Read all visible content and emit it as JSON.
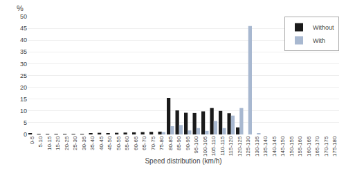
{
  "chart_data": {
    "type": "bar",
    "categories": [
      "0-5",
      "5-10",
      "10-15",
      "15-20",
      "20-25",
      "25-30",
      "30-35",
      "35-40",
      "40-45",
      "45-50",
      "50-55",
      "55-60",
      "60-65",
      "65-70",
      "70-75",
      "75-80",
      "80-85",
      "85-90",
      "90-95",
      "95-100",
      "100-105",
      "105-110",
      "110-115",
      "115-120",
      "120-125",
      "125-130",
      "130-135",
      "135-140",
      "140-145",
      "145-150",
      "150-155",
      "155-160",
      "160-165",
      "165-170",
      "170-175",
      "175-180"
    ],
    "series": [
      {
        "name": "Without",
        "color": "#1a1a1a",
        "values": [
          0.3,
          0.1,
          0.1,
          0.1,
          0.1,
          0.1,
          0.1,
          0.5,
          0.7,
          0.5,
          0.7,
          0.8,
          0.9,
          1.0,
          1.1,
          1.2,
          15.5,
          10.2,
          9.2,
          9.1,
          9.8,
          11.2,
          10.0,
          9.0,
          3.0,
          0.0,
          0.0,
          0.0,
          0.0,
          0.0,
          0.0,
          0.0,
          0.0,
          0.0,
          0.0,
          0.0
        ]
      },
      {
        "name": "With",
        "color": "#a8b8d0",
        "values": [
          0.0,
          0.0,
          0.0,
          0.0,
          0.0,
          0.0,
          0.0,
          0.0,
          0.0,
          0.0,
          0.0,
          0.0,
          0.0,
          0.0,
          0.0,
          1.0,
          3.5,
          4.0,
          1.7,
          2.7,
          1.5,
          5.7,
          2.7,
          8.0,
          11.2,
          46.0,
          0.5,
          0.0,
          0.0,
          0.0,
          0.0,
          0.0,
          0.0,
          0.0,
          0.0,
          0.0
        ]
      }
    ],
    "xlabel": "Speed distribution (km/h)",
    "ylabel": "%",
    "ylim": [
      0,
      50
    ],
    "yticks": [
      0,
      5,
      10,
      15,
      20,
      25,
      30,
      35,
      40,
      45,
      50
    ],
    "grid": true,
    "legend": "upper right"
  }
}
